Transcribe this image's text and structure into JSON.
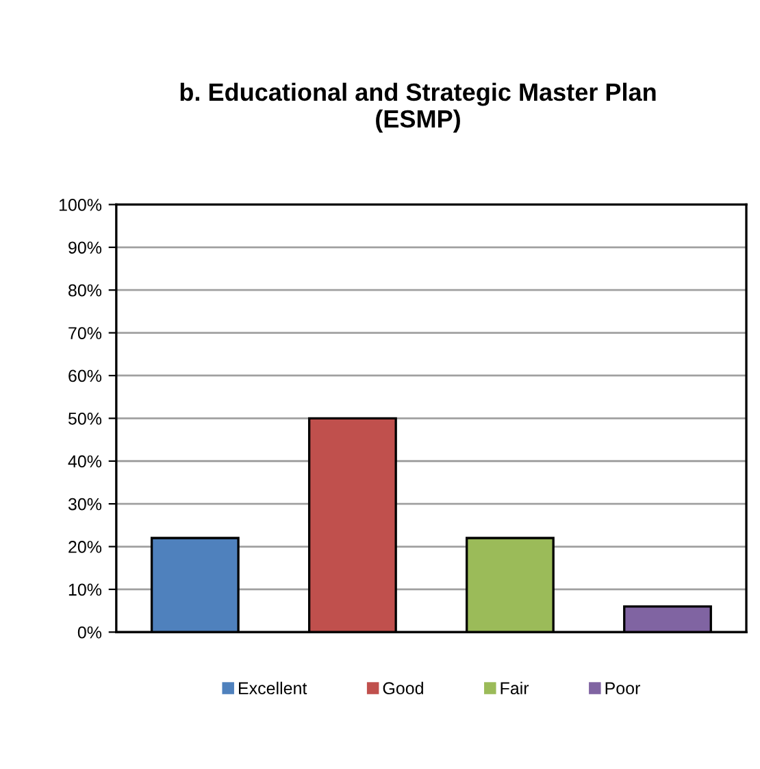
{
  "chart_data": {
    "type": "bar",
    "title": "b. Educational and Strategic Master Plan\n(ESMP)",
    "categories": [
      null,
      null,
      null,
      null
    ],
    "series": [
      {
        "name": "Excellent",
        "color": "#4f81bd",
        "values": [
          22,
          null,
          null,
          null
        ]
      },
      {
        "name": "Good",
        "color": "#c0504d",
        "values": [
          null,
          50,
          null,
          null
        ]
      },
      {
        "name": "Fair",
        "color": "#9bbb59",
        "values": [
          null,
          null,
          22,
          null
        ]
      },
      {
        "name": "Poor",
        "color": "#8064a2",
        "values": [
          null,
          null,
          null,
          6
        ]
      }
    ],
    "ylim": [
      0,
      100
    ],
    "yticks": [
      {
        "value": 0,
        "label": "0%"
      },
      {
        "value": 10,
        "label": "10%"
      },
      {
        "value": 20,
        "label": "20%"
      },
      {
        "value": 30,
        "label": "30%"
      },
      {
        "value": 40,
        "label": "40%"
      },
      {
        "value": 50,
        "label": "50%"
      },
      {
        "value": 60,
        "label": "60%"
      },
      {
        "value": 70,
        "label": "70%"
      },
      {
        "value": 80,
        "label": "80%"
      },
      {
        "value": 90,
        "label": "90%"
      },
      {
        "value": 100,
        "label": "100%"
      }
    ],
    "grid": "y",
    "legend": "bottom"
  }
}
